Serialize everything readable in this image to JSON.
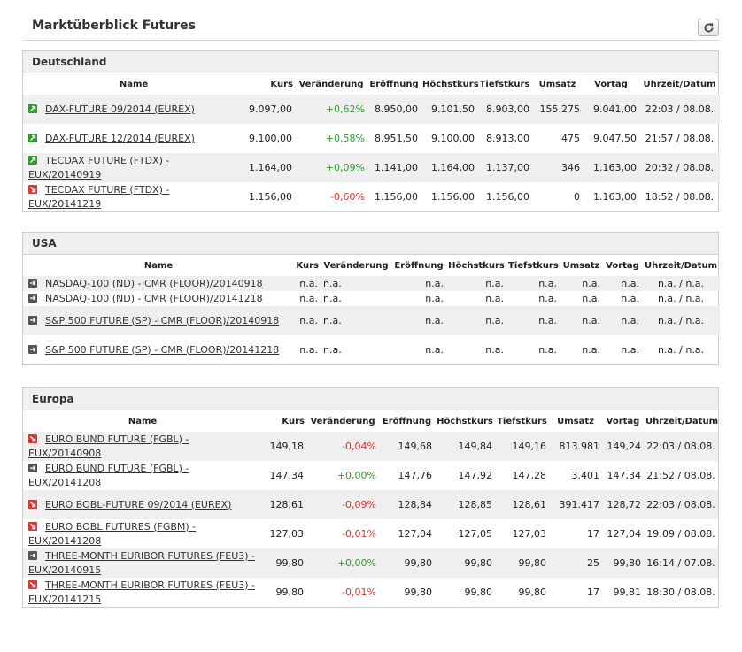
{
  "page": {
    "title": "Marktüberblick Futures",
    "refresh_icon": "refresh-icon"
  },
  "colors": {
    "positive": "#2f9c2f",
    "negative": "#e0302e",
    "up_icon_bg": "#2e9a2e",
    "down_icon_bg": "#d63a35",
    "neutral_icon_bg": "#555555"
  },
  "headers": [
    "Name",
    "Kurs",
    "Veränderung",
    "Eröffnung",
    "Höchstkurs",
    "Tiefstkurs",
    "Umsatz",
    "Vortag",
    "Uhrzeit/Datum"
  ],
  "sections": {
    "de": {
      "title": "Deutschland",
      "rows": [
        {
          "icon": "up",
          "name": "DAX-FUTURE 09/2014 (EUREX)",
          "kurs": "9.097,00",
          "change": "+0,62%",
          "dir": "pos",
          "open": "8.950,00",
          "high": "9.101,50",
          "low": "8.903,00",
          "umsatz": "155.275",
          "vortag": "9.041,00",
          "time": "22:03 / 08.08."
        },
        {
          "icon": "up",
          "name": "DAX-FUTURE 12/2014 (EUREX)",
          "kurs": "9.100,00",
          "change": "+0,58%",
          "dir": "pos",
          "open": "8.951,50",
          "high": "9.100,00",
          "low": "8.913,00",
          "umsatz": "475",
          "vortag": "9.047,50",
          "time": "21:57 / 08.08."
        },
        {
          "icon": "up",
          "name": "TECDAX FUTURE (FTDX) - EUX/20140919",
          "kurs": "1.164,00",
          "change": "+0,09%",
          "dir": "pos",
          "open": "1.141,00",
          "high": "1.164,00",
          "low": "1.137,00",
          "umsatz": "346",
          "vortag": "1.163,00",
          "time": "20:32 / 08.08."
        },
        {
          "icon": "down",
          "name": "TECDAX FUTURE (FTDX) - EUX/20141219",
          "kurs": "1.156,00",
          "change": "-0,60%",
          "dir": "neg",
          "open": "1.156,00",
          "high": "1.156,00",
          "low": "1.156,00",
          "umsatz": "0",
          "vortag": "1.163,00",
          "time": "18:52 / 08.08."
        }
      ]
    },
    "us": {
      "title": "USA",
      "rows": [
        {
          "icon": "neutral",
          "name": "NASDAQ-100 (ND) - CMR (FLOOR)/20140918",
          "kurs": "n.a.",
          "change": "n.a.",
          "dir": "neu",
          "open": "n.a.",
          "high": "n.a.",
          "low": "n.a.",
          "umsatz": "n.a.",
          "vortag": "n.a.",
          "time": "n.a. / n.a."
        },
        {
          "icon": "neutral",
          "name": "NASDAQ-100 (ND) - CMR (FLOOR)/20141218",
          "kurs": "n.a.",
          "change": "n.a.",
          "dir": "neu",
          "open": "n.a.",
          "high": "n.a.",
          "low": "n.a.",
          "umsatz": "n.a.",
          "vortag": "n.a.",
          "time": "n.a. / n.a."
        },
        {
          "icon": "neutral",
          "name": "S&P 500 FUTURE (SP) - CMR (FLOOR)/20140918",
          "kurs": "n.a.",
          "change": "n.a.",
          "dir": "neu",
          "open": "n.a.",
          "high": "n.a.",
          "low": "n.a.",
          "umsatz": "n.a.",
          "vortag": "n.a.",
          "time": "n.a. / n.a."
        },
        {
          "icon": "neutral",
          "name": "S&P 500 FUTURE (SP) - CMR (FLOOR)/20141218",
          "kurs": "n.a.",
          "change": "n.a.",
          "dir": "neu",
          "open": "n.a.",
          "high": "n.a.",
          "low": "n.a.",
          "umsatz": "n.a.",
          "vortag": "n.a.",
          "time": "n.a. / n.a."
        }
      ]
    },
    "eu": {
      "title": "Europa",
      "rows": [
        {
          "icon": "down",
          "name": "EURO BUND FUTURE (FGBL) - EUX/20140908",
          "kurs": "149,18",
          "change": "-0,04%",
          "dir": "neg",
          "open": "149,68",
          "high": "149,84",
          "low": "149,16",
          "umsatz": "813.981",
          "vortag": "149,24",
          "time": "22:03 / 08.08."
        },
        {
          "icon": "neutral",
          "name": "EURO BUND FUTURE (FGBL) - EUX/20141208",
          "kurs": "147,34",
          "change": "+0,00%",
          "dir": "pos",
          "open": "147,76",
          "high": "147,92",
          "low": "147,28",
          "umsatz": "3.401",
          "vortag": "147,34",
          "time": "21:52 / 08.08."
        },
        {
          "icon": "down",
          "name": "EURO BOBL-FUTURE 09/2014 (EUREX)",
          "kurs": "128,61",
          "change": "-0,09%",
          "dir": "neg",
          "open": "128,84",
          "high": "128,85",
          "low": "128,61",
          "umsatz": "391.417",
          "vortag": "128,72",
          "time": "22:03 / 08.08."
        },
        {
          "icon": "down",
          "name": "EURO BOBL FUTURES (FGBM) - EUX/20141208",
          "kurs": "127,03",
          "change": "-0,01%",
          "dir": "neg",
          "open": "127,04",
          "high": "127,05",
          "low": "127,03",
          "umsatz": "17",
          "vortag": "127,04",
          "time": "19:09 / 08.08."
        },
        {
          "icon": "neutral",
          "name": "THREE-MONTH EURIBOR FUTURES (FEU3) - EUX/20140915",
          "kurs": "99,80",
          "change": "+0,00%",
          "dir": "pos",
          "open": "99,80",
          "high": "99,80",
          "low": "99,80",
          "umsatz": "25",
          "vortag": "99,80",
          "time": "16:14 / 07.08."
        },
        {
          "icon": "down",
          "name": "THREE-MONTH EURIBOR FUTURES (FEU3) - EUX/20141215",
          "kurs": "99,80",
          "change": "-0,01%",
          "dir": "neg",
          "open": "99,80",
          "high": "99,80",
          "low": "99,80",
          "umsatz": "17",
          "vortag": "99,81",
          "time": "18:30 / 08.08."
        }
      ]
    }
  }
}
